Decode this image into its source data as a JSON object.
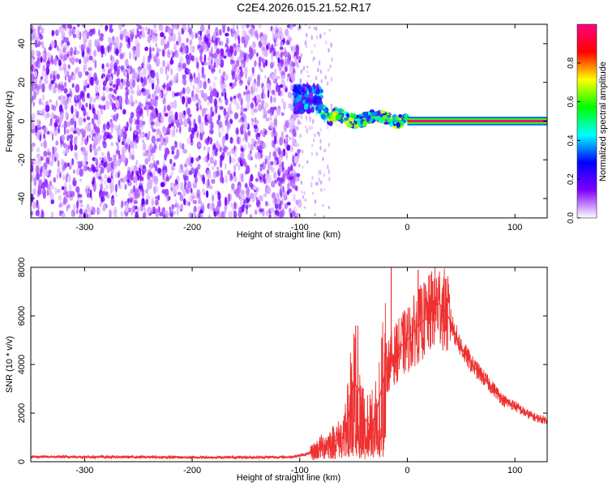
{
  "figure": {
    "title": "C2E4.2026.015.21.52.R17"
  },
  "chart_data": [
    {
      "type": "heatmap",
      "xlabel": "Height of straight line (km)",
      "ylabel": "Frequency (Hz)",
      "xlim": [
        -350,
        130
      ],
      "ylim": [
        -50,
        50
      ],
      "xticks": [
        -300,
        -200,
        -100,
        0,
        100
      ],
      "yticks": [
        -40,
        -20,
        0,
        20,
        40
      ],
      "description_regions": [
        {
          "kind": "noise",
          "x": [
            -350,
            -100
          ],
          "y": [
            -50,
            50
          ],
          "amplitude": 0.1
        },
        {
          "kind": "signal_onset",
          "x": [
            -105,
            -80
          ],
          "y": [
            5,
            18
          ],
          "amplitude": 0.3
        },
        {
          "kind": "signal_track",
          "x": [
            -80,
            0
          ],
          "y": [
            -2,
            4
          ],
          "amplitude": 0.45
        },
        {
          "kind": "carrier_line",
          "x": [
            0,
            130
          ],
          "y": [
            -1,
            1
          ],
          "amplitude": 1.0
        }
      ],
      "colorbar": {
        "label": "Normalized spectral amplitude",
        "range": [
          0,
          1
        ],
        "ticks": [
          "0.0",
          "0.2",
          "0.4",
          "0.6",
          "0.8"
        ],
        "tick_values": [
          0,
          0.2,
          0.4,
          0.6,
          0.8
        ],
        "colors": [
          "#ffffff",
          "#8000ff",
          "#0000ff",
          "#00ffff",
          "#00ff00",
          "#ffff00",
          "#ff0000",
          "#ff0080"
        ]
      }
    },
    {
      "type": "line",
      "xlabel": "Height of straight line (km)",
      "ylabel": "SNR (10 * v/v)",
      "xlim": [
        -350,
        130
      ],
      "ylim": [
        0,
        8000
      ],
      "xticks": [
        -300,
        -200,
        -100,
        0,
        100
      ],
      "yticks": [
        0,
        2000,
        4000,
        6000,
        8000
      ],
      "line_color": "#ee3030",
      "series": [
        {
          "name": "SNR",
          "x": [
            -350,
            -300,
            -250,
            -200,
            -150,
            -110,
            -100,
            -90,
            -80,
            -70,
            -60,
            -55,
            -50,
            -45,
            -40,
            -35,
            -30,
            -25,
            -20,
            -15,
            -10,
            -5,
            0,
            5,
            10,
            15,
            20,
            25,
            30,
            35,
            40,
            45,
            50,
            60,
            70,
            80,
            90,
            100,
            110,
            120,
            130
          ],
          "values": [
            200,
            200,
            190,
            180,
            180,
            190,
            250,
            350,
            600,
            800,
            1000,
            1800,
            3200,
            3000,
            1800,
            1500,
            1800,
            2800,
            3800,
            4200,
            4500,
            4800,
            5000,
            5300,
            5600,
            5800,
            6000,
            6400,
            6500,
            6200,
            5800,
            5200,
            4700,
            4000,
            3500,
            3000,
            2500,
            2300,
            2000,
            1800,
            1700
          ]
        }
      ],
      "spikes": [
        {
          "x": -48,
          "value": 5600
        },
        {
          "x": -15,
          "value": 8000
        },
        {
          "x": 10,
          "value": 7900
        },
        {
          "x": 30,
          "value": 6900
        }
      ]
    }
  ]
}
